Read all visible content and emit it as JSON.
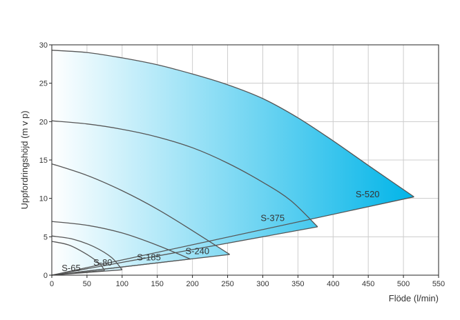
{
  "chart_data": {
    "type": "area",
    "title": "",
    "xlabel": "Flöde (l/min)",
    "ylabel": "Uppfordringshöjd (m v p)",
    "xlim": [
      0,
      550
    ],
    "ylim": [
      0,
      30
    ],
    "x_ticks": [
      0,
      50,
      100,
      150,
      200,
      250,
      300,
      350,
      400,
      450,
      500,
      550
    ],
    "y_ticks": [
      0,
      5,
      10,
      15,
      20,
      25,
      30
    ],
    "grid": true,
    "legend": "none",
    "colors": {
      "gradient_start": "#ffffff",
      "gradient_end": "#00b4e8",
      "curve": "#555555",
      "grid": "#cccccc"
    },
    "series": [
      {
        "name": "S-520",
        "label_at": [
          432,
          10.5
        ],
        "points": [
          [
            0,
            29.3
          ],
          [
            50,
            29
          ],
          [
            100,
            28.3
          ],
          [
            150,
            27.4
          ],
          [
            200,
            26.2
          ],
          [
            250,
            24.8
          ],
          [
            300,
            23
          ],
          [
            350,
            20.5
          ],
          [
            400,
            17.5
          ],
          [
            450,
            14.3
          ],
          [
            515,
            10.2
          ]
        ]
      },
      {
        "name": "S-375",
        "label_at": [
          297,
          7.4
        ],
        "points": [
          [
            0,
            20.1
          ],
          [
            50,
            19.7
          ],
          [
            100,
            19
          ],
          [
            150,
            18
          ],
          [
            200,
            16.6
          ],
          [
            250,
            14.6
          ],
          [
            300,
            12.1
          ],
          [
            340,
            9.7
          ],
          [
            378,
            6.3
          ]
        ]
      },
      {
        "name": "S-240",
        "label_at": [
          190,
          3.1
        ],
        "points": [
          [
            0,
            14.5
          ],
          [
            50,
            13
          ],
          [
            100,
            11
          ],
          [
            150,
            8.6
          ],
          [
            200,
            5.8
          ],
          [
            253,
            2.7
          ]
        ]
      },
      {
        "name": "S-185",
        "label_at": [
          121,
          2.3
        ],
        "points": [
          [
            0,
            7
          ],
          [
            50,
            6.5
          ],
          [
            100,
            5.5
          ],
          [
            150,
            3.9
          ],
          [
            197,
            2.1
          ]
        ]
      },
      {
        "name": "S-80",
        "label_at": [
          59,
          1.6
        ],
        "points": [
          [
            0,
            5.1
          ],
          [
            30,
            4.7
          ],
          [
            60,
            3.7
          ],
          [
            85,
            2.3
          ],
          [
            100,
            0.7
          ]
        ]
      },
      {
        "name": "S-65",
        "label_at": [
          14,
          0.9
        ],
        "points": [
          [
            0,
            4.4
          ],
          [
            25,
            3.9
          ],
          [
            50,
            2.7
          ],
          [
            68,
            1.5
          ],
          [
            75,
            0.6
          ]
        ]
      }
    ]
  }
}
